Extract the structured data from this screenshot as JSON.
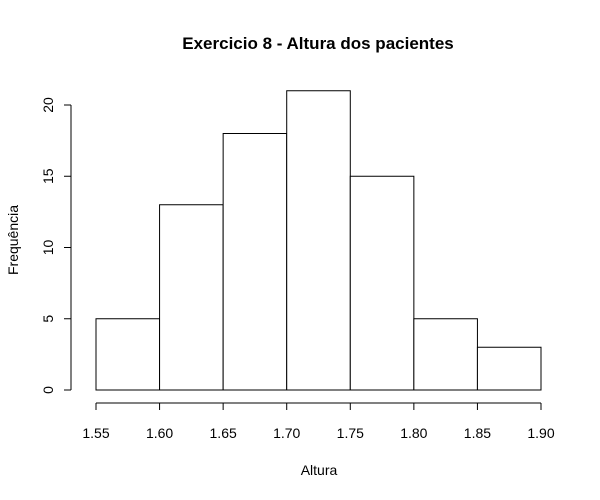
{
  "chart_data": {
    "type": "bar",
    "subtype": "histogram",
    "title": "Exercicio 8 - Altura dos pacientes",
    "xlabel": "Altura",
    "ylabel": "Frequência",
    "bins": [
      {
        "from": 1.55,
        "to": 1.6,
        "value": 5
      },
      {
        "from": 1.6,
        "to": 1.65,
        "value": 13
      },
      {
        "from": 1.65,
        "to": 1.7,
        "value": 18
      },
      {
        "from": 1.7,
        "to": 1.75,
        "value": 21
      },
      {
        "from": 1.75,
        "to": 1.8,
        "value": 15
      },
      {
        "from": 1.8,
        "to": 1.85,
        "value": 5
      },
      {
        "from": 1.85,
        "to": 1.9,
        "value": 3
      }
    ],
    "xlim": [
      1.55,
      1.9
    ],
    "ylim": [
      0,
      21
    ],
    "x_ticks": [
      "1.55",
      "1.60",
      "1.65",
      "1.70",
      "1.75",
      "1.80",
      "1.85",
      "1.90"
    ],
    "y_ticks": [
      "0",
      "5",
      "10",
      "15",
      "20"
    ],
    "grid": false,
    "legend": "none",
    "bar_fill": "#ffffff",
    "bar_stroke": "#000000"
  }
}
